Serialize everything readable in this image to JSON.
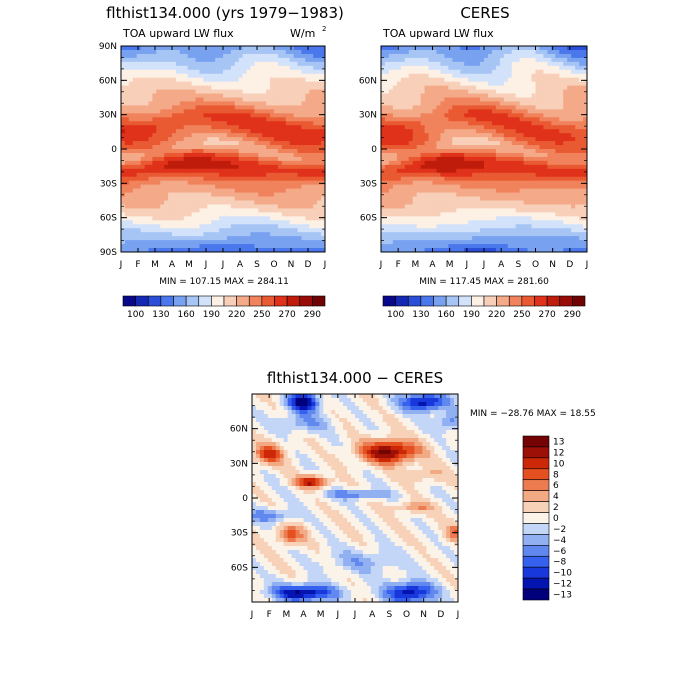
{
  "months": [
    "J",
    "F",
    "M",
    "A",
    "M",
    "J",
    "J",
    "A",
    "S",
    "O",
    "N",
    "D",
    "J"
  ],
  "lat_ticks_full": [
    "90N",
    "60N",
    "30N",
    "0",
    "30S",
    "60S",
    "90S"
  ],
  "lat_ticks_diff": [
    "60N",
    "30N",
    "0",
    "30S",
    "60S"
  ],
  "abs_levels": [
    "100",
    "130",
    "160",
    "190",
    "220",
    "250",
    "270",
    "290"
  ],
  "colors": {
    "abs_scale": [
      "#08088a",
      "#1428b4",
      "#2a4ed8",
      "#4a78ec",
      "#78a2f0",
      "#a6c4f4",
      "#d2e2fa",
      "#fdf0e4",
      "#f8cfb8",
      "#f4aa88",
      "#f0825c",
      "#ea5a32",
      "#e0321a",
      "#c01c0c",
      "#980c08",
      "#700404"
    ],
    "diff_scale": [
      "#00007c",
      "#0414b0",
      "#1838dc",
      "#3660ee",
      "#6088ee",
      "#90b0f2",
      "#c4d6f8",
      "#fbf2e8",
      "#f8d2b8",
      "#f2aa84",
      "#ec7c50",
      "#e45020",
      "#cc2808",
      "#9c1008",
      "#740404"
    ]
  },
  "chart_data": [
    {
      "type": "heatmap",
      "title": "flthist134.000 (yrs 1979−1983)",
      "subtitle_left": "TOA upward LW flux",
      "subtitle_right_unit": "W/m",
      "unit_superscript": "2",
      "stats": "MIN = 107.15 MAX = 284.11",
      "xticks": [
        "J",
        "F",
        "M",
        "A",
        "M",
        "J",
        "J",
        "A",
        "S",
        "O",
        "N",
        "D",
        "J"
      ],
      "yticks": [
        "90N",
        "60N",
        "30N",
        "0",
        "30S",
        "60S",
        "90S"
      ],
      "colorbar_labels": [
        "100",
        "130",
        "160",
        "190",
        "220",
        "250",
        "270",
        "290"
      ],
      "zlim": [
        107.15,
        284.11
      ]
    },
    {
      "type": "heatmap",
      "title": "CERES",
      "subtitle_left": "TOA upward LW flux",
      "stats": "MIN = 117.45 MAX = 281.60",
      "xticks": [
        "J",
        "F",
        "M",
        "A",
        "M",
        "J",
        "J",
        "A",
        "S",
        "O",
        "N",
        "D",
        "J"
      ],
      "yticks": [
        "60N",
        "30N",
        "0",
        "30S",
        "60S"
      ],
      "colorbar_labels": [
        "100",
        "130",
        "160",
        "190",
        "220",
        "250",
        "270",
        "290"
      ],
      "zlim": [
        117.45,
        281.6
      ]
    },
    {
      "type": "heatmap",
      "title": "flthist134.000 − CERES",
      "stats": "MIN = −28.76 MAX =  18.55",
      "xticks": [
        "J",
        "F",
        "M",
        "A",
        "M",
        "J",
        "J",
        "A",
        "S",
        "O",
        "N",
        "D",
        "J"
      ],
      "yticks": [
        "60N",
        "30N",
        "0",
        "30S",
        "60S"
      ],
      "colorbar_labels": [
        "13",
        "12",
        "10",
        "8",
        "6",
        "4",
        "2",
        "0",
        "−2",
        "−4",
        "−6",
        "−8",
        "−10",
        "−12",
        "−13"
      ],
      "zlim": [
        -28.76,
        18.55
      ]
    }
  ]
}
